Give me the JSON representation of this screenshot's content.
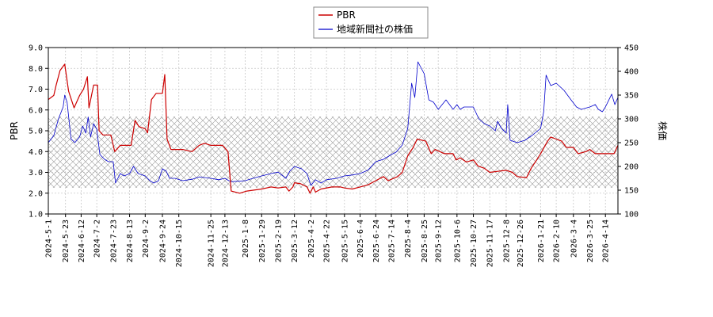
{
  "chart_data": {
    "type": "line",
    "legend_position": "top-center",
    "grid": true,
    "ylabel_left": "PBR",
    "ylabel_right": "株価",
    "ylim_left": [
      1.0,
      9.0
    ],
    "ylim_right": [
      100,
      450
    ],
    "yticks_left": [
      "1.0",
      "2.0",
      "3.0",
      "4.0",
      "5.0",
      "6.0",
      "7.0",
      "8.0",
      "9.0"
    ],
    "yticks_right": [
      "100",
      "150",
      "200",
      "250",
      "300",
      "350",
      "400",
      "450"
    ],
    "band_right": [
      155,
      305
    ],
    "x_dates": [
      "2024-5-1",
      "2024-5-23",
      "2024-6-12",
      "2024-7-2",
      "2024-7-23",
      "2024-8-13",
      "2024-9-2",
      "2024-9-24",
      "2024-10-15",
      "2024-11-25",
      "2024-12-13",
      "2025-1-8",
      "2025-1-29",
      "2025-2-19",
      "2025-3-12",
      "2025-4-2",
      "2025-4-22",
      "2025-5-15",
      "2025-6-4",
      "2025-6-24",
      "2025-7-14",
      "2025-8-4",
      "2025-8-25",
      "2025-9-12",
      "2025-10-6",
      "2025-10-27",
      "2025-11-17",
      "2025-12-8",
      "2025-12-26",
      "2026-1-21",
      "2026-2-10",
      "2026-3-4",
      "2026-3-25",
      "2026-4-14"
    ],
    "x_range": [
      "2024-5-1",
      "2026-4-30"
    ],
    "colors": {
      "pbr": "#cc0000",
      "price": "#0000cc",
      "band": "#999999",
      "grid": "#c8c8c8"
    },
    "series": [
      {
        "name": "PBR",
        "axis": "left",
        "points": [
          [
            "2024-5-1",
            6.5
          ],
          [
            "2024-5-8",
            6.7
          ],
          [
            "2024-5-11",
            7.2
          ],
          [
            "2024-5-16",
            7.9
          ],
          [
            "2024-5-22",
            8.2
          ],
          [
            "2024-5-27",
            6.9
          ],
          [
            "2024-6-3",
            6.1
          ],
          [
            "2024-6-10",
            6.7
          ],
          [
            "2024-6-15",
            7.0
          ],
          [
            "2024-6-20",
            7.6
          ],
          [
            "2024-6-22",
            6.1
          ],
          [
            "2024-6-28",
            7.2
          ],
          [
            "2024-7-3",
            7.2
          ],
          [
            "2024-7-5",
            5.0
          ],
          [
            "2024-7-10",
            4.8
          ],
          [
            "2024-7-20",
            4.8
          ],
          [
            "2024-7-25",
            4.0
          ],
          [
            "2024-8-1",
            4.3
          ],
          [
            "2024-8-15",
            4.3
          ],
          [
            "2024-8-20",
            5.5
          ],
          [
            "2024-8-25",
            5.2
          ],
          [
            "2024-9-2",
            5.1
          ],
          [
            "2024-9-5",
            4.9
          ],
          [
            "2024-9-10",
            6.5
          ],
          [
            "2024-9-16",
            6.8
          ],
          [
            "2024-9-24",
            6.8
          ],
          [
            "2024-9-27",
            7.7
          ],
          [
            "2024-9-30",
            4.6
          ],
          [
            "2024-10-5",
            4.1
          ],
          [
            "2024-10-20",
            4.1
          ],
          [
            "2024-11-1",
            4.0
          ],
          [
            "2024-11-10",
            4.3
          ],
          [
            "2024-11-17",
            4.4
          ],
          [
            "2024-11-25",
            4.3
          ],
          [
            "2024-12-10",
            4.3
          ],
          [
            "2024-12-17",
            4.0
          ],
          [
            "2024-12-21",
            2.1
          ],
          [
            "2025-1-1",
            2.0
          ],
          [
            "2025-1-10",
            2.1
          ],
          [
            "2025-1-29",
            2.2
          ],
          [
            "2025-2-10",
            2.3
          ],
          [
            "2025-2-19",
            2.25
          ],
          [
            "2025-3-1",
            2.3
          ],
          [
            "2025-3-5",
            2.1
          ],
          [
            "2025-3-10",
            2.3
          ],
          [
            "2025-3-12",
            2.5
          ],
          [
            "2025-3-20",
            2.45
          ],
          [
            "2025-3-28",
            2.3
          ],
          [
            "2025-4-1",
            2.0
          ],
          [
            "2025-4-5",
            2.3
          ],
          [
            "2025-4-8",
            2.05
          ],
          [
            "2025-4-15",
            2.2
          ],
          [
            "2025-4-29",
            2.3
          ],
          [
            "2025-5-10",
            2.3
          ],
          [
            "2025-5-15",
            2.25
          ],
          [
            "2025-5-25",
            2.2
          ],
          [
            "2025-6-4",
            2.3
          ],
          [
            "2025-6-14",
            2.4
          ],
          [
            "2025-6-24",
            2.6
          ],
          [
            "2025-7-4",
            2.8
          ],
          [
            "2025-7-10",
            2.6
          ],
          [
            "2025-7-22",
            2.8
          ],
          [
            "2025-7-28",
            3.0
          ],
          [
            "2025-8-4",
            3.8
          ],
          [
            "2025-8-11",
            4.2
          ],
          [
            "2025-8-16",
            4.6
          ],
          [
            "2025-8-27",
            4.5
          ],
          [
            "2025-9-3",
            3.9
          ],
          [
            "2025-9-8",
            4.1
          ],
          [
            "2025-9-20",
            3.9
          ],
          [
            "2025-10-1",
            3.9
          ],
          [
            "2025-10-5",
            3.6
          ],
          [
            "2025-10-10",
            3.7
          ],
          [
            "2025-10-18",
            3.5
          ],
          [
            "2025-10-27",
            3.6
          ],
          [
            "2025-11-2",
            3.3
          ],
          [
            "2025-11-10",
            3.2
          ],
          [
            "2025-11-17",
            3.0
          ],
          [
            "2025-11-27",
            3.05
          ],
          [
            "2025-12-8",
            3.1
          ],
          [
            "2025-12-16",
            3.0
          ],
          [
            "2025-12-22",
            2.8
          ],
          [
            "2026-1-3",
            2.75
          ],
          [
            "2026-1-9",
            3.2
          ],
          [
            "2026-1-16",
            3.6
          ],
          [
            "2026-1-21",
            3.9
          ],
          [
            "2026-1-30",
            4.5
          ],
          [
            "2026-2-3",
            4.7
          ],
          [
            "2026-2-10",
            4.6
          ],
          [
            "2026-2-17",
            4.5
          ],
          [
            "2026-2-23",
            4.2
          ],
          [
            "2026-3-4",
            4.2
          ],
          [
            "2026-3-10",
            3.9
          ],
          [
            "2026-3-20",
            4.0
          ],
          [
            "2026-3-25",
            4.1
          ],
          [
            "2026-4-1",
            3.9
          ],
          [
            "2026-4-14",
            3.9
          ],
          [
            "2026-4-25",
            3.9
          ],
          [
            "2026-4-30",
            4.3
          ]
        ]
      },
      {
        "name": "地域新聞社の株価",
        "axis": "right",
        "points": [
          [
            "2024-5-1",
            250
          ],
          [
            "2024-5-8",
            265
          ],
          [
            "2024-5-14",
            300
          ],
          [
            "2024-5-20",
            325
          ],
          [
            "2024-5-22",
            350
          ],
          [
            "2024-5-25",
            335
          ],
          [
            "2024-5-30",
            258
          ],
          [
            "2024-6-4",
            250
          ],
          [
            "2024-6-10",
            262
          ],
          [
            "2024-6-14",
            285
          ],
          [
            "2024-6-18",
            270
          ],
          [
            "2024-6-21",
            304
          ],
          [
            "2024-6-24",
            262
          ],
          [
            "2024-6-28",
            290
          ],
          [
            "2024-7-2",
            278
          ],
          [
            "2024-7-6",
            225
          ],
          [
            "2024-7-12",
            215
          ],
          [
            "2024-7-17",
            210
          ],
          [
            "2024-7-23",
            210
          ],
          [
            "2024-7-26",
            165
          ],
          [
            "2024-8-1",
            185
          ],
          [
            "2024-8-6",
            180
          ],
          [
            "2024-8-13",
            185
          ],
          [
            "2024-8-18",
            200
          ],
          [
            "2024-8-24",
            185
          ],
          [
            "2024-9-2",
            180
          ],
          [
            "2024-9-8",
            170
          ],
          [
            "2024-9-13",
            165
          ],
          [
            "2024-9-19",
            170
          ],
          [
            "2024-9-24",
            195
          ],
          [
            "2024-9-29",
            190
          ],
          [
            "2024-10-3",
            175
          ],
          [
            "2024-10-10",
            175
          ],
          [
            "2024-10-20",
            170
          ],
          [
            "2024-11-1",
            173
          ],
          [
            "2024-11-10",
            178
          ],
          [
            "2024-11-25",
            175
          ],
          [
            "2024-12-5",
            172
          ],
          [
            "2024-12-13",
            175
          ],
          [
            "2024-12-18",
            170
          ],
          [
            "2024-12-22",
            168
          ],
          [
            "2025-1-8",
            170
          ],
          [
            "2025-1-18",
            175
          ],
          [
            "2025-1-29",
            180
          ],
          [
            "2025-2-10",
            185
          ],
          [
            "2025-2-19",
            188
          ],
          [
            "2025-3-1",
            175
          ],
          [
            "2025-3-6",
            190
          ],
          [
            "2025-3-12",
            200
          ],
          [
            "2025-3-21",
            195
          ],
          [
            "2025-3-28",
            185
          ],
          [
            "2025-4-2",
            160
          ],
          [
            "2025-4-8",
            172
          ],
          [
            "2025-4-15",
            165
          ],
          [
            "2025-4-22",
            172
          ],
          [
            "2025-5-5",
            175
          ],
          [
            "2025-5-15",
            180
          ],
          [
            "2025-5-25",
            182
          ],
          [
            "2025-6-4",
            185
          ],
          [
            "2025-6-14",
            192
          ],
          [
            "2025-6-24",
            210
          ],
          [
            "2025-7-4",
            215
          ],
          [
            "2025-7-14",
            225
          ],
          [
            "2025-7-20",
            230
          ],
          [
            "2025-7-28",
            245
          ],
          [
            "2025-8-4",
            280
          ],
          [
            "2025-8-9",
            375
          ],
          [
            "2025-8-13",
            345
          ],
          [
            "2025-8-17",
            420
          ],
          [
            "2025-8-25",
            395
          ],
          [
            "2025-8-31",
            340
          ],
          [
            "2025-9-6",
            335
          ],
          [
            "2025-9-12",
            320
          ],
          [
            "2025-9-22",
            340
          ],
          [
            "2025-10-1",
            320
          ],
          [
            "2025-10-6",
            330
          ],
          [
            "2025-10-10",
            320
          ],
          [
            "2025-10-15",
            325
          ],
          [
            "2025-10-27",
            325
          ],
          [
            "2025-11-3",
            300
          ],
          [
            "2025-11-10",
            290
          ],
          [
            "2025-11-17",
            285
          ],
          [
            "2025-11-24",
            275
          ],
          [
            "2025-11-27",
            295
          ],
          [
            "2025-12-2",
            280
          ],
          [
            "2025-12-8",
            270
          ],
          [
            "2025-12-10",
            330
          ],
          [
            "2025-12-13",
            255
          ],
          [
            "2025-12-22",
            250
          ],
          [
            "2026-1-1",
            255
          ],
          [
            "2026-1-10",
            265
          ],
          [
            "2026-1-21",
            280
          ],
          [
            "2026-1-25",
            315
          ],
          [
            "2026-1-28",
            392
          ],
          [
            "2026-2-3",
            370
          ],
          [
            "2026-2-10",
            375
          ],
          [
            "2026-2-20",
            360
          ],
          [
            "2026-3-1",
            340
          ],
          [
            "2026-3-8",
            325
          ],
          [
            "2026-3-14",
            320
          ],
          [
            "2026-3-25",
            325
          ],
          [
            "2026-4-1",
            330
          ],
          [
            "2026-4-5",
            320
          ],
          [
            "2026-4-10",
            315
          ],
          [
            "2026-4-14",
            325
          ],
          [
            "2026-4-22",
            352
          ],
          [
            "2026-4-26",
            330
          ],
          [
            "2026-4-30",
            345
          ]
        ]
      }
    ]
  }
}
